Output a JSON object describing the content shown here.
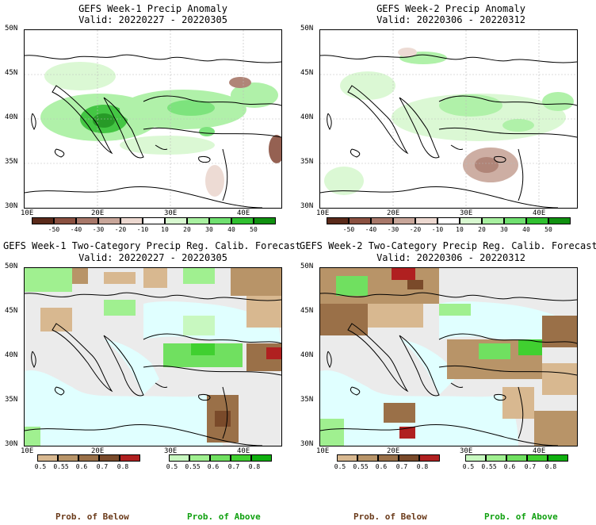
{
  "panels": [
    {
      "id": "p1",
      "title": "GEFS Week-1 Precip Anomaly",
      "valid": "Valid: 20220227 - 20220305",
      "kind": "anomaly"
    },
    {
      "id": "p2",
      "title": "GEFS Week-2 Precip Anomaly",
      "valid": "Valid: 20220306 - 20220312",
      "kind": "anomaly"
    },
    {
      "id": "p3",
      "title": "GEFS Week-1 Two-Category Precip Reg. Calib. Forecast",
      "valid": "Valid: 20220227 - 20220305",
      "kind": "prob"
    },
    {
      "id": "p4",
      "title": "GEFS Week-2 Two-Category Precip Reg. Calib. Forecast",
      "valid": "Valid: 20220306 - 20220312",
      "kind": "prob"
    }
  ],
  "axes": {
    "lat_labels": [
      "50N",
      "45N",
      "40N",
      "35N",
      "30N"
    ],
    "lon_labels": [
      "10E",
      "20E",
      "30E",
      "40E"
    ]
  },
  "anomaly_colorbar": {
    "ticks": [
      "-50",
      "-40",
      "-30",
      "-20",
      "-10",
      "10",
      "20",
      "30",
      "40",
      "50"
    ],
    "colors": [
      "#5a2a1a",
      "#8a5040",
      "#a8786a",
      "#c8a69a",
      "#ecd8d0",
      "#ffffff",
      "#d8f8d0",
      "#a8f0a0",
      "#70e070",
      "#30c030",
      "#109010"
    ]
  },
  "prob_colorbars": {
    "below": {
      "ticks": [
        "0.5",
        "0.55",
        "0.6",
        "0.7",
        "0.8"
      ],
      "colors": [
        "#d8b890",
        "#b89468",
        "#9a7048",
        "#7a4a2a",
        "#b02020"
      ],
      "label": "Prob. of Below",
      "label_color": "#6a3a1a"
    },
    "above": {
      "ticks": [
        "0.5",
        "0.55",
        "0.6",
        "0.7",
        "0.8"
      ],
      "colors": [
        "#c8f8c0",
        "#a0f090",
        "#70e060",
        "#40d030",
        "#10b010"
      ],
      "label": "Prob. of Above",
      "label_color": "#10a010"
    }
  },
  "colors": {
    "sea": "#e0ffff",
    "land_neutral": "#ebebeb"
  }
}
